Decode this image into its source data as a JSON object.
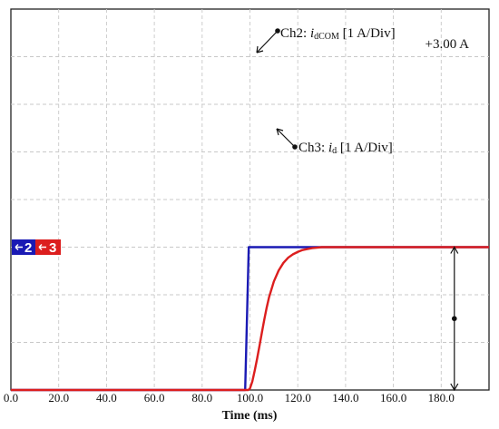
{
  "chart_data": {
    "type": "line",
    "xlabel": "Time (ms)",
    "xlim": [
      0,
      200
    ],
    "ylim_div": [
      -3.0,
      5.0
    ],
    "x_ticks": [
      "0.0",
      "20.0",
      "40.0",
      "60.0",
      "80.0",
      "100.0",
      "120.0",
      "140.0",
      "160.0",
      "180.0"
    ],
    "grid": true,
    "grid_style": "dashed",
    "series": [
      {
        "name": "Ch2",
        "color": "#1a1ab4",
        "label_prefix": "Ch2: ",
        "label_symbol": "i",
        "label_subscript": "dCOM",
        "label_suffix": " [1 A/Div]",
        "marker": "2",
        "x": [
          0,
          98,
          99.5,
          200
        ],
        "y_div": [
          -3.0,
          -3.0,
          0.0,
          0.0
        ]
      },
      {
        "name": "Ch3",
        "color": "#dc1e1e",
        "label_prefix": "Ch3: ",
        "label_symbol": "i",
        "label_subscript": "d",
        "label_suffix": " [1 A/Div]",
        "marker": "3",
        "x": [
          0,
          99.3,
          100,
          101,
          102,
          103,
          104,
          105,
          106,
          107,
          108,
          110,
          112,
          114,
          116,
          118,
          120,
          122,
          124,
          126,
          128,
          130,
          135,
          200
        ],
        "y_div": [
          -3.0,
          -3.0,
          -2.97,
          -2.82,
          -2.59,
          -2.34,
          -2.07,
          -1.79,
          -1.52,
          -1.27,
          -1.05,
          -0.72,
          -0.49,
          -0.33,
          -0.22,
          -0.15,
          -0.1,
          -0.06,
          -0.04,
          -0.02,
          -0.01,
          0.0,
          0.0,
          0.0
        ]
      }
    ],
    "channel_markers_level_div": 0.0,
    "measurement": {
      "label": "+3.00 A",
      "x": 185.5,
      "from_div": 0.0,
      "to_div": -3.0
    }
  }
}
